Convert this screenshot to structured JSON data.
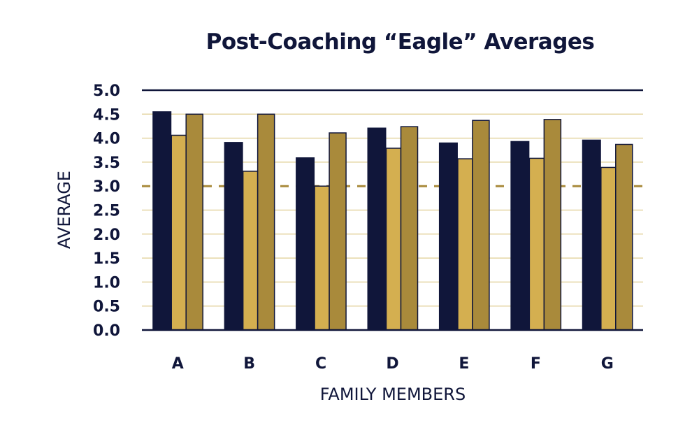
{
  "chart_data": {
    "type": "bar",
    "title": "Post-Coaching “Eagle” Averages",
    "xlabel": "FAMILY MEMBERS",
    "ylabel": "AVERAGE",
    "categories": [
      "A",
      "B",
      "C",
      "D",
      "E",
      "F",
      "G"
    ],
    "series": [
      {
        "values": [
          4.56,
          3.92,
          3.6,
          4.22,
          3.91,
          3.94,
          3.97
        ],
        "color": "#10163a"
      },
      {
        "values": [
          4.06,
          3.31,
          3.0,
          3.79,
          3.57,
          3.58,
          3.39
        ],
        "color": "#d4af50"
      },
      {
        "values": [
          4.5,
          4.5,
          4.11,
          4.24,
          4.37,
          4.39,
          3.87
        ],
        "color": "#a98a3b"
      }
    ],
    "ylim": [
      0,
      5
    ],
    "yticks": [
      "0.0",
      "0.5",
      "1.0",
      "1.5",
      "2.0",
      "2.5",
      "3.0",
      "3.5",
      "4.0",
      "4.5",
      "5.0"
    ],
    "grid": true,
    "reference_line": {
      "value": 3.0,
      "style": "dashed",
      "color": "#a98a3b"
    },
    "grid_color": "#e5d6a4"
  }
}
